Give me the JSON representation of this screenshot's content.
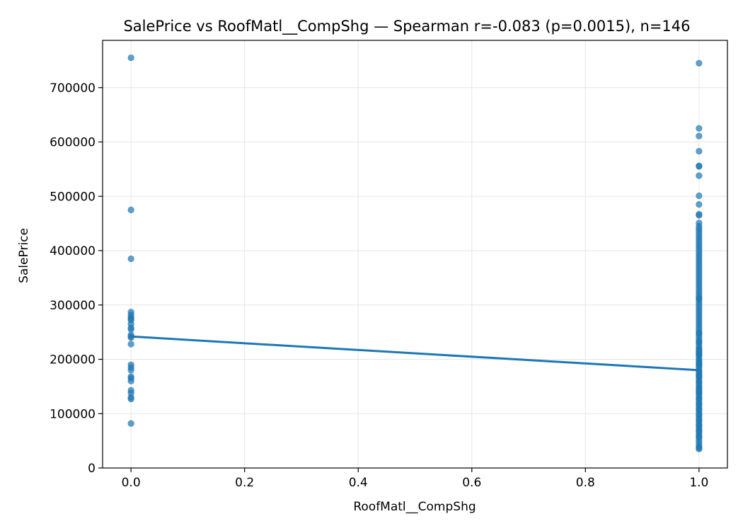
{
  "chart_data": {
    "type": "scatter",
    "title": "SalePrice vs RoofMatl__CompShg — Spearman r=-0.083 (p=0.0015), n=146",
    "xlabel": "RoofMatl__CompShg",
    "ylabel": "SalePrice",
    "xlim": [
      -0.05,
      1.05
    ],
    "ylim": [
      0,
      787000
    ],
    "xticks": [
      0.0,
      0.2,
      0.4,
      0.6,
      0.8,
      1.0
    ],
    "xtick_labels": [
      "0.0",
      "0.2",
      "0.4",
      "0.6",
      "0.8",
      "1.0"
    ],
    "yticks": [
      0,
      100000,
      200000,
      300000,
      400000,
      500000,
      600000,
      700000
    ],
    "ytick_labels": [
      "0",
      "100000",
      "200000",
      "300000",
      "400000",
      "500000",
      "600000",
      "700000"
    ],
    "grid": true,
    "point_color": "#1f77b4",
    "line_color": "#1f77b4",
    "trend_line": {
      "x": [
        0,
        1
      ],
      "y": [
        242000,
        180000
      ]
    },
    "series": [
      {
        "x": [
          0,
          0,
          0,
          0,
          0,
          0,
          0,
          0,
          0,
          0,
          0,
          0,
          0,
          0,
          0,
          0,
          0,
          0,
          0,
          0,
          0,
          0,
          0,
          0,
          0,
          0
        ],
        "y": [
          755000,
          475000,
          385000,
          287000,
          282000,
          277000,
          272000,
          265000,
          258000,
          242000,
          240000,
          228000,
          190000,
          185000,
          180000,
          168000,
          165000,
          160000,
          143000,
          138000,
          130000,
          127000,
          82000,
          245000,
          275000,
          255000
        ]
      },
      {
        "x": [
          1,
          1,
          1,
          1,
          1,
          1,
          1,
          1,
          1,
          1,
          1,
          1,
          1,
          1,
          1,
          1,
          1,
          1,
          1,
          1,
          1,
          1,
          1,
          1,
          1,
          1,
          1,
          1,
          1,
          1,
          1,
          1,
          1,
          1,
          1,
          1,
          1,
          1,
          1,
          1,
          1,
          1,
          1,
          1,
          1,
          1,
          1,
          1,
          1,
          1,
          1,
          1,
          1,
          1,
          1,
          1,
          1,
          1,
          1,
          1,
          1,
          1,
          1,
          1,
          1,
          1,
          1,
          1,
          1,
          1,
          1,
          1,
          1,
          1,
          1,
          1,
          1,
          1,
          1,
          1,
          1,
          1,
          1,
          1,
          1,
          1,
          1,
          1,
          1,
          1,
          1,
          1,
          1,
          1,
          1,
          1,
          1,
          1,
          1,
          1,
          1,
          1,
          1,
          1,
          1,
          1,
          1,
          1,
          1,
          1,
          1,
          1,
          1,
          1,
          1,
          1,
          1,
          1,
          1,
          1
        ],
        "y": [
          745000,
          625000,
          611000,
          583000,
          556000,
          555000,
          538000,
          501000,
          485000,
          467000,
          465000,
          451000,
          445000,
          440000,
          435000,
          430000,
          425000,
          420000,
          415000,
          410000,
          405000,
          400000,
          395000,
          390000,
          385000,
          380000,
          375000,
          370000,
          365000,
          360000,
          355000,
          350000,
          345000,
          340000,
          335000,
          330000,
          325000,
          320000,
          315000,
          310000,
          305000,
          300000,
          295000,
          290000,
          285000,
          280000,
          275000,
          270000,
          265000,
          260000,
          255000,
          250000,
          245000,
          240000,
          235000,
          230000,
          225000,
          220000,
          215000,
          210000,
          205000,
          200000,
          195000,
          190000,
          185000,
          180000,
          175000,
          170000,
          165000,
          160000,
          155000,
          150000,
          145000,
          140000,
          135000,
          130000,
          125000,
          120000,
          115000,
          110000,
          105000,
          100000,
          95000,
          90000,
          85000,
          80000,
          75000,
          70000,
          65000,
          60000,
          55000,
          50000,
          45000,
          40000,
          37000,
          35000,
          312000,
          248000,
          232000,
          218000,
          208000,
          198000,
          188000,
          178000,
          168000,
          158000,
          148000,
          138000,
          128000,
          118000,
          108000,
          98000,
          88000,
          78000,
          68000,
          58000,
          142000,
          172000,
          192000,
          212000
        ]
      }
    ]
  }
}
